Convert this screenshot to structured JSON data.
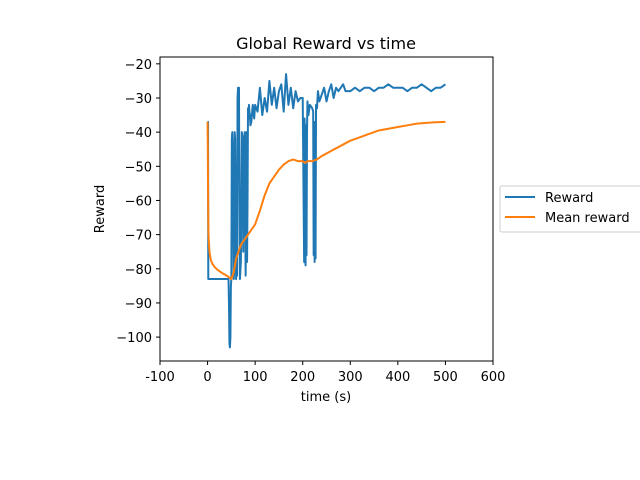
{
  "chart_data": {
    "type": "line",
    "title": "Global Reward vs time",
    "xlabel": "time (s)",
    "ylabel": "Reward",
    "xlim": [
      -100,
      600
    ],
    "ylim": [
      -107,
      -18
    ],
    "xticks": [
      -100,
      0,
      100,
      200,
      300,
      400,
      500,
      600
    ],
    "xtick_labels": [
      "-100",
      "0",
      "100",
      "200",
      "300",
      "400",
      "500",
      "600"
    ],
    "yticks": [
      -100,
      -90,
      -80,
      -70,
      -60,
      -50,
      -40,
      -30,
      -20
    ],
    "ytick_labels": [
      "−100",
      "−90",
      "−80",
      "−70",
      "−60",
      "−50",
      "−40",
      "−30",
      "−20"
    ],
    "grid": false,
    "legend": {
      "placement": "outside-right",
      "entries": [
        "Reward",
        "Mean reward"
      ]
    },
    "series": [
      {
        "name": "Reward",
        "color": "#1f77b4",
        "x": [
          0,
          1,
          1.5,
          2,
          3,
          5,
          10,
          15,
          20,
          25,
          30,
          35,
          40,
          44,
          45,
          46,
          47,
          48,
          49,
          50,
          51,
          52,
          53,
          55,
          56,
          57,
          58,
          60,
          61,
          62,
          63,
          64,
          65,
          66,
          67,
          68,
          70,
          72,
          74,
          75,
          76,
          78,
          80,
          82,
          83,
          84,
          85,
          86,
          87,
          88,
          89,
          90,
          92,
          95,
          98,
          100,
          105,
          110,
          115,
          120,
          125,
          130,
          135,
          140,
          145,
          150,
          155,
          160,
          165,
          170,
          175,
          180,
          185,
          190,
          195,
          200,
          203,
          204,
          205,
          206,
          207,
          208,
          209,
          210,
          212,
          215,
          220,
          222,
          223,
          224,
          225,
          226,
          227,
          228,
          230,
          232,
          235,
          240,
          245,
          250,
          255,
          260,
          265,
          270,
          275,
          280,
          285,
          290,
          300,
          310,
          320,
          330,
          340,
          350,
          360,
          370,
          380,
          390,
          400,
          410,
          420,
          430,
          440,
          450,
          460,
          470,
          480,
          490,
          500
        ],
        "values": [
          -37,
          -37,
          -83,
          -83,
          -83,
          -83,
          -83,
          -83,
          -83,
          -83,
          -83,
          -83,
          -83,
          -83,
          -90,
          -102,
          -103,
          -100,
          -85,
          -83,
          -42,
          -40,
          -45,
          -83,
          -80,
          -40,
          -42,
          -83,
          -80,
          -82,
          -30,
          -27,
          -28,
          -27,
          -60,
          -83,
          -78,
          -40,
          -42,
          -75,
          -45,
          -40,
          -82,
          -40,
          -78,
          -60,
          -33,
          -36,
          -32,
          -34,
          -35,
          -38,
          -37,
          -32,
          -36,
          -32,
          -34,
          -27,
          -35,
          -30,
          -34,
          -25,
          -32,
          -27,
          -33,
          -28,
          -26,
          -34,
          -23,
          -32,
          -27,
          -33,
          -28,
          -31,
          -30,
          -30,
          -78,
          -36,
          -76,
          -79,
          -38,
          -76,
          -40,
          -31,
          -35,
          -32,
          -33,
          -34,
          -76,
          -39,
          -78,
          -37,
          -77,
          -32,
          -33,
          -28,
          -31,
          -29,
          -27,
          -31,
          -28,
          -26,
          -30,
          -27,
          -28,
          -27,
          -26,
          -28,
          -28,
          -27,
          -28,
          -27,
          -27,
          -28,
          -27,
          -27,
          -26,
          -27,
          -27,
          -27,
          -28,
          -27,
          -27,
          -26,
          -27,
          -28,
          -27,
          -27,
          -26
        ]
      },
      {
        "name": "Mean reward",
        "color": "#ff7f0e",
        "x": [
          0,
          0.5,
          1,
          1.5,
          2,
          3,
          4,
          5,
          7,
          10,
          15,
          20,
          25,
          30,
          35,
          40,
          45,
          50,
          55,
          60,
          65,
          70,
          75,
          80,
          85,
          90,
          95,
          100,
          110,
          120,
          130,
          140,
          150,
          160,
          170,
          180,
          190,
          200,
          205,
          210,
          215,
          220,
          230,
          240,
          260,
          280,
          300,
          320,
          340,
          360,
          380,
          400,
          420,
          440,
          460,
          480,
          500
        ],
        "values": [
          -37,
          -45,
          -57,
          -65,
          -70,
          -73,
          -75,
          -76,
          -77.5,
          -78.5,
          -79.5,
          -80.2,
          -80.7,
          -81.2,
          -81.6,
          -82,
          -82.5,
          -83,
          -81,
          -77,
          -75,
          -73,
          -72,
          -71,
          -70,
          -69,
          -68,
          -67,
          -63,
          -58.5,
          -55,
          -53,
          -51,
          -49.5,
          -48.5,
          -48,
          -48.5,
          -48.5,
          -49,
          -48.5,
          -48.5,
          -48.5,
          -48,
          -47,
          -45.5,
          -44,
          -42.5,
          -41.5,
          -40.5,
          -39.5,
          -39,
          -38.5,
          -38,
          -37.5,
          -37.3,
          -37.1,
          -37
        ]
      }
    ]
  }
}
